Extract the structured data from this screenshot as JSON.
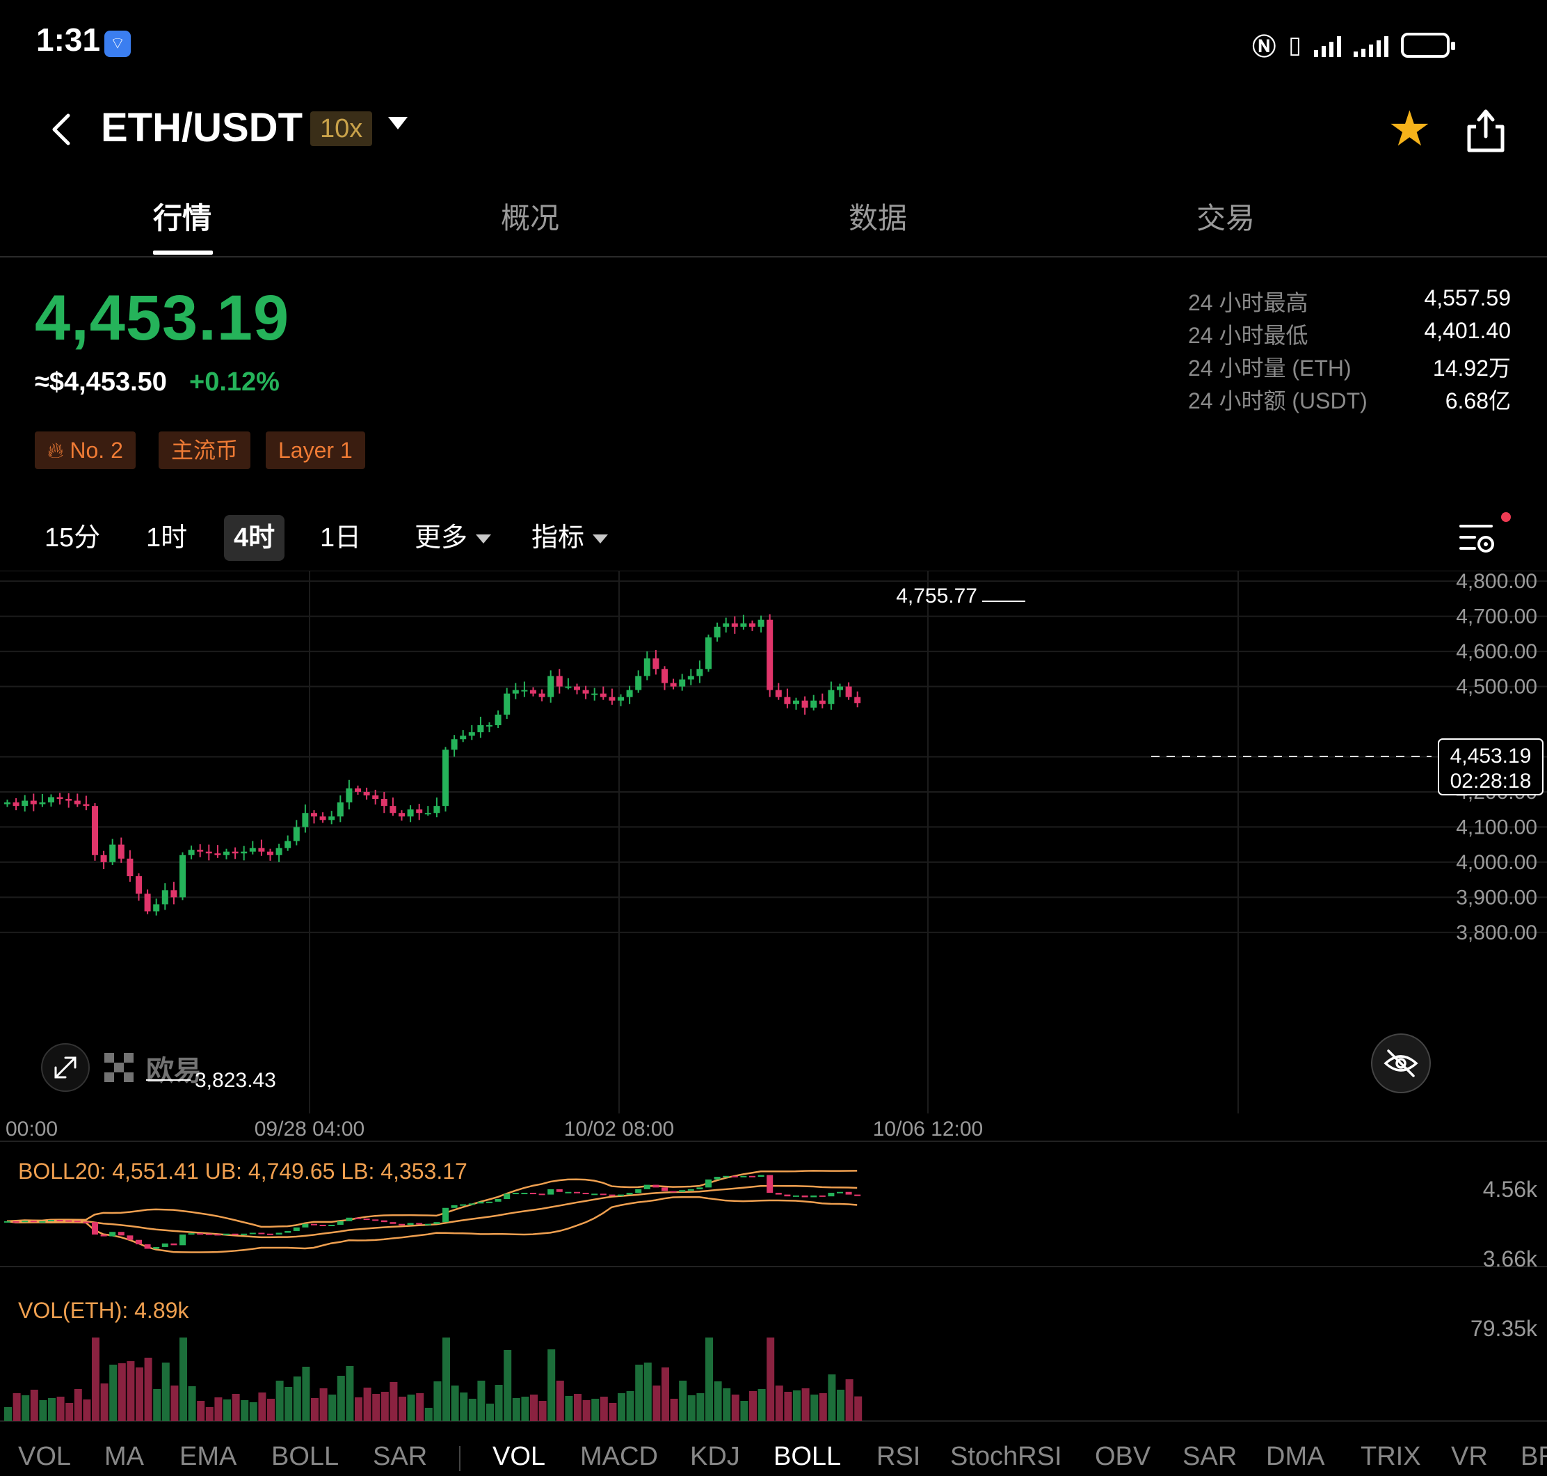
{
  "status_bar": {
    "time": "1:31"
  },
  "header": {
    "pair": "ETH/USDT",
    "leverage": "10x"
  },
  "tabs": [
    {
      "label": "行情",
      "active": true
    },
    {
      "label": "概况",
      "active": false
    },
    {
      "label": "数据",
      "active": false
    },
    {
      "label": "交易",
      "active": false
    }
  ],
  "ticker": {
    "last_price": "4,453.19",
    "usd_price": "≈$4,453.50",
    "change": "+0.12%",
    "stats": [
      {
        "label": "24 小时最高",
        "value": "4,557.59"
      },
      {
        "label": "24 小时最低",
        "value": "4,401.40"
      },
      {
        "label": "24 小时量 (ETH)",
        "value": "14.92万"
      },
      {
        "label": "24 小时额 (USDT)",
        "value": "6.68亿"
      }
    ],
    "tags": [
      "No. 2",
      "主流币",
      "Layer 1"
    ]
  },
  "timeframes": [
    {
      "label": "15分",
      "active": false
    },
    {
      "label": "1时",
      "active": false
    },
    {
      "label": "4时",
      "active": true
    },
    {
      "label": "1日",
      "active": false
    }
  ],
  "toolbar": {
    "more": "更多",
    "indicators": "指标"
  },
  "colors": {
    "up": "#25b35a",
    "down": "#e0356a",
    "accent": "#f5b21a",
    "boll": "#f0a050"
  },
  "main_chart": {
    "y_ticks": [
      "4,800.00",
      "4,700.00",
      "4,600.00",
      "4,500.00",
      "4,300.00",
      "4,200.00",
      "4,100.00",
      "4,000.00",
      "3,900.00",
      "3,800.00"
    ],
    "x_ticks": [
      "00:00",
      "09/28 04:00",
      "10/02 08:00",
      "10/06 12:00"
    ],
    "high_label": "4,755.77",
    "low_label": "3,823.43",
    "current_price": "4,453.19",
    "countdown": "02:28:18",
    "watermark": "欧易"
  },
  "boll_panel": {
    "label": "BOLL20: 4,551.41 UB: 4,749.65 LB: 4,353.17",
    "y_ticks": [
      "4.56k",
      "3.66k"
    ]
  },
  "vol_panel": {
    "label": "VOL(ETH): 4.89k",
    "y_tick": "79.35k"
  },
  "bottom_indicators": {
    "left": [
      "VOL",
      "MA",
      "EMA",
      "BOLL",
      "SAR"
    ],
    "right": [
      "VOL",
      "MACD",
      "KDJ",
      "BOLL",
      "RSI",
      "StochRSI",
      "OBV",
      "SAR",
      "DMA",
      "TRIX",
      "VR",
      "BR"
    ],
    "selected_right": [
      "VOL",
      "BOLL"
    ]
  },
  "chart_data": {
    "type": "candlestick",
    "interval": "4时",
    "y_range": [
      3760,
      4830
    ],
    "high": 4755.77,
    "low": 3823.43,
    "last": 4453.19,
    "closes": [
      4170,
      4160,
      4175,
      4165,
      4170,
      4185,
      4180,
      4175,
      4165,
      4160,
      4020,
      4000,
      4050,
      4010,
      3960,
      3910,
      3860,
      3880,
      3920,
      3900,
      4020,
      4035,
      4030,
      4025,
      4020,
      4030,
      4025,
      4030,
      4040,
      4030,
      4020,
      4040,
      4060,
      4100,
      4140,
      4130,
      4120,
      4130,
      4170,
      4210,
      4200,
      4190,
      4180,
      4160,
      4140,
      4130,
      4150,
      4140,
      4140,
      4160,
      4320,
      4350,
      4360,
      4370,
      4390,
      4390,
      4420,
      4480,
      4490,
      4490,
      4480,
      4470,
      4530,
      4500,
      4500,
      4490,
      4480,
      4480,
      4470,
      4460,
      4470,
      4490,
      4530,
      4580,
      4550,
      4510,
      4500,
      4520,
      4530,
      4550,
      4640,
      4670,
      4680,
      4670,
      4680,
      4670,
      4690,
      4490,
      4470,
      4450,
      4460,
      4440,
      4460,
      4450,
      4490,
      4500,
      4470,
      4453
    ]
  }
}
